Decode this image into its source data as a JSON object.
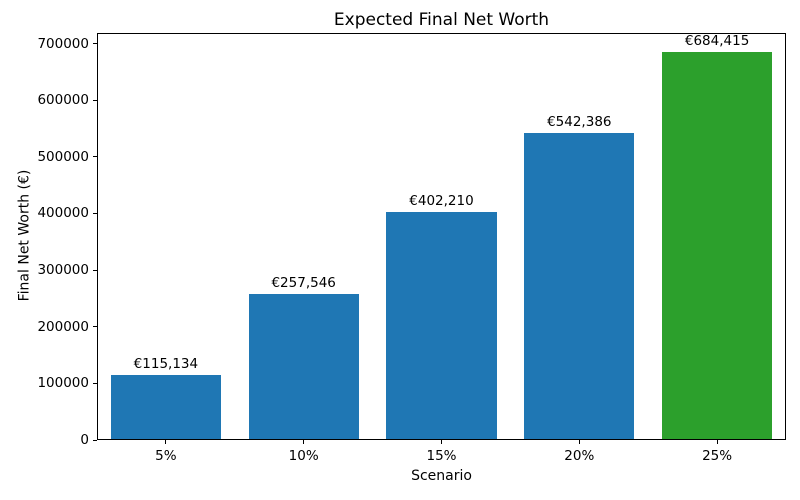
{
  "chart_data": {
    "type": "bar",
    "title": "Expected Final Net Worth",
    "xlabel": "Scenario",
    "ylabel": "Final Net Worth (€)",
    "categories": [
      "5%",
      "10%",
      "15%",
      "20%",
      "25%"
    ],
    "values": [
      115134,
      257546,
      402210,
      542386,
      684415
    ],
    "bar_labels": [
      "€115,134",
      "€257,546",
      "€402,210",
      "€542,386",
      "€684,415"
    ],
    "bar_colors": [
      "#1f77b4",
      "#1f77b4",
      "#1f77b4",
      "#1f77b4",
      "#2ca02c"
    ],
    "yticks": [
      0,
      100000,
      200000,
      300000,
      400000,
      500000,
      600000,
      700000
    ],
    "ytick_labels": [
      "0",
      "100000",
      "200000",
      "300000",
      "400000",
      "500000",
      "600000",
      "700000"
    ],
    "ylim": [
      0,
      718636
    ],
    "bar_width_fraction": 0.8,
    "grid": false,
    "legend": "none"
  },
  "colors": {
    "bar_blue": "#1f77b4",
    "bar_green": "#2ca02c",
    "axis": "#000000",
    "background": "#ffffff",
    "text": "#000000"
  }
}
